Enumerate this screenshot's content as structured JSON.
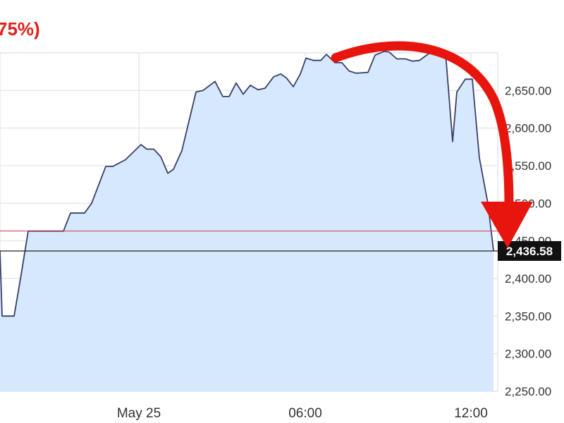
{
  "header": {
    "change_text": "75%)",
    "color": "#e0211b"
  },
  "chart_data": {
    "type": "area",
    "x_ticks": [
      "May 25",
      "06:00",
      "12:00"
    ],
    "y_ticks": [
      2250,
      2300,
      2350,
      2400,
      2450,
      2500,
      2550,
      2600,
      2650
    ],
    "ylim": [
      2250,
      2700
    ],
    "current_value_label": "2,436.58",
    "current_value": 2436.58,
    "reference_value": 2463,
    "grid": true,
    "annotation": "red curved arrow pointing down to current value",
    "colors": {
      "line": "#3a3f6b",
      "fill": "#d6e8fb",
      "reference": "#d0324d",
      "grid": "#e3e8ef",
      "arrow": "#e8150f"
    },
    "series": [
      {
        "points": [
          [
            0,
            2436
          ],
          [
            3,
            2350
          ],
          [
            20,
            2350
          ],
          [
            30,
            2405
          ],
          [
            40,
            2463
          ],
          [
            90,
            2463
          ],
          [
            100,
            2487
          ],
          [
            120,
            2487
          ],
          [
            130,
            2500
          ],
          [
            150,
            2549
          ],
          [
            160,
            2549
          ],
          [
            178,
            2558
          ],
          [
            200,
            2578
          ],
          [
            208,
            2572
          ],
          [
            218,
            2572
          ],
          [
            228,
            2562
          ],
          [
            238,
            2540
          ],
          [
            246,
            2545
          ],
          [
            258,
            2570
          ],
          [
            278,
            2648
          ],
          [
            288,
            2650
          ],
          [
            305,
            2662
          ],
          [
            316,
            2642
          ],
          [
            325,
            2642
          ],
          [
            335,
            2660
          ],
          [
            345,
            2645
          ],
          [
            355,
            2657
          ],
          [
            366,
            2651
          ],
          [
            376,
            2653
          ],
          [
            388,
            2668
          ],
          [
            398,
            2672
          ],
          [
            406,
            2667
          ],
          [
            416,
            2655
          ],
          [
            426,
            2672
          ],
          [
            434,
            2693
          ],
          [
            445,
            2690
          ],
          [
            455,
            2690
          ],
          [
            463,
            2698
          ],
          [
            475,
            2687
          ],
          [
            485,
            2687
          ],
          [
            495,
            2676
          ],
          [
            505,
            2673
          ],
          [
            522,
            2674
          ],
          [
            532,
            2697
          ],
          [
            545,
            2702
          ],
          [
            552,
            2701
          ],
          [
            563,
            2692
          ],
          [
            575,
            2692
          ],
          [
            585,
            2689
          ],
          [
            595,
            2690
          ],
          [
            608,
            2699
          ],
          [
            620,
            2700
          ],
          [
            632,
            2700
          ],
          [
            642,
            2582
          ],
          [
            648,
            2648
          ],
          [
            660,
            2665
          ],
          [
            670,
            2665
          ],
          [
            680,
            2560
          ],
          [
            692,
            2500
          ],
          [
            700,
            2437
          ]
        ]
      }
    ]
  }
}
